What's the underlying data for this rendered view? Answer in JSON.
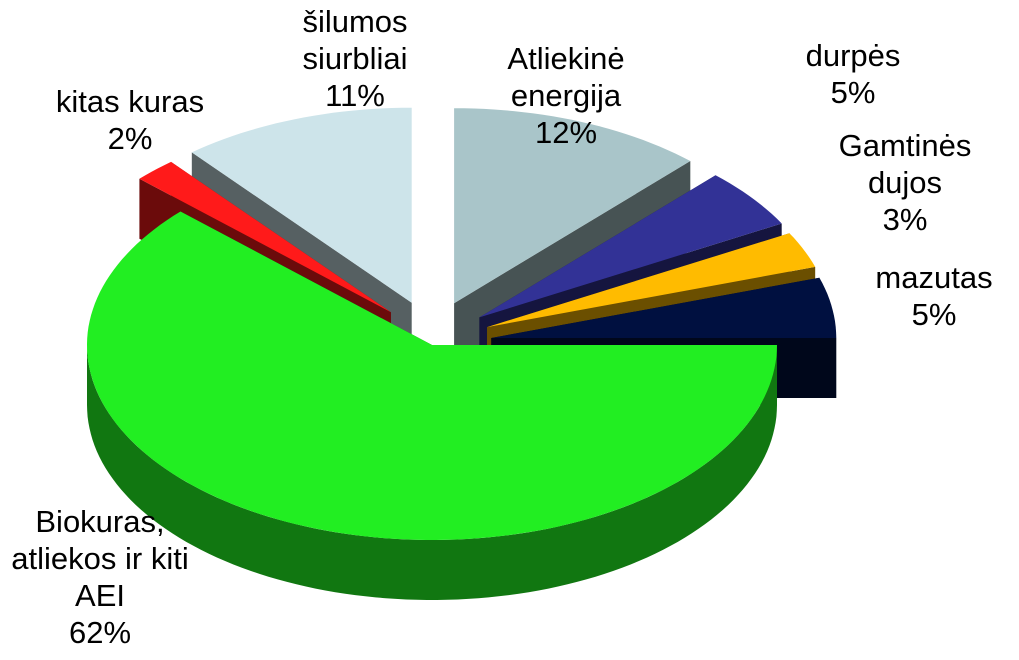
{
  "chart_data": {
    "type": "pie",
    "categories": [
      "Biokuras, atliekos ir kiti AEI",
      "kitas kuras",
      "šilumos siurbliai",
      "Atliekinė energija",
      "durpės",
      "Gamtinės dujos",
      "mazutas"
    ],
    "values": [
      62,
      2,
      11,
      12,
      5,
      3,
      5
    ],
    "value_labels": [
      "62%",
      "2%",
      "11%",
      "12%",
      "5%",
      "3%",
      "5%"
    ],
    "colors": [
      "#22ee22",
      "#ff1a1a",
      "#cde4ea",
      "#a9c5c9",
      "#323296",
      "#ffbb00",
      "#001040"
    ]
  }
}
